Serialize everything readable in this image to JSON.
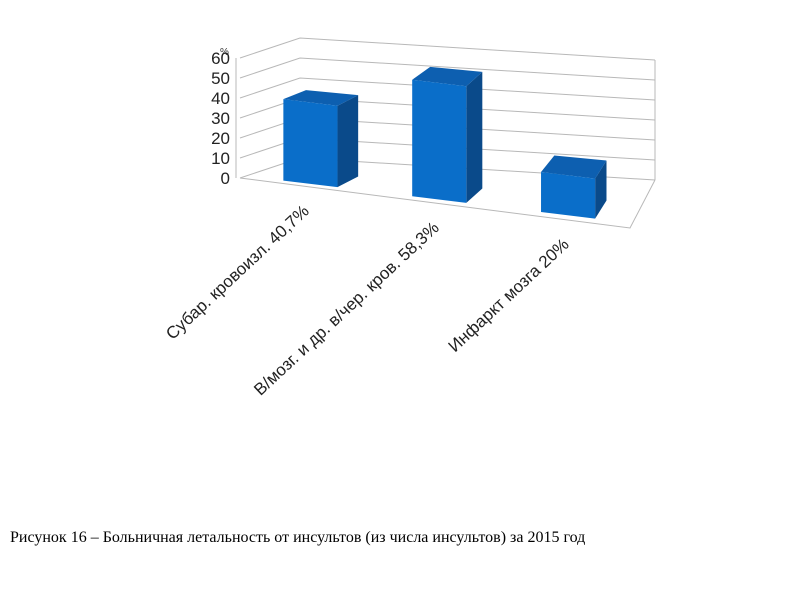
{
  "chart_data": {
    "type": "bar3d",
    "y_axis_label": "%",
    "categories": [
      "Субар. кровоизл. 40,7%",
      "В/мозг. и др. в/чер. кров. 58,3%",
      "Инфаркт мозга 20%"
    ],
    "values": [
      40.7,
      58.3,
      20
    ],
    "color": "#0a6ec9",
    "ylim": [
      0,
      60
    ],
    "yticks": [
      0,
      10,
      20,
      30,
      40,
      50,
      60
    ],
    "grid": true
  },
  "caption": "Рисунок 16 – Больничная летальность от инсультов (из числа инсультов) за 2015 год"
}
